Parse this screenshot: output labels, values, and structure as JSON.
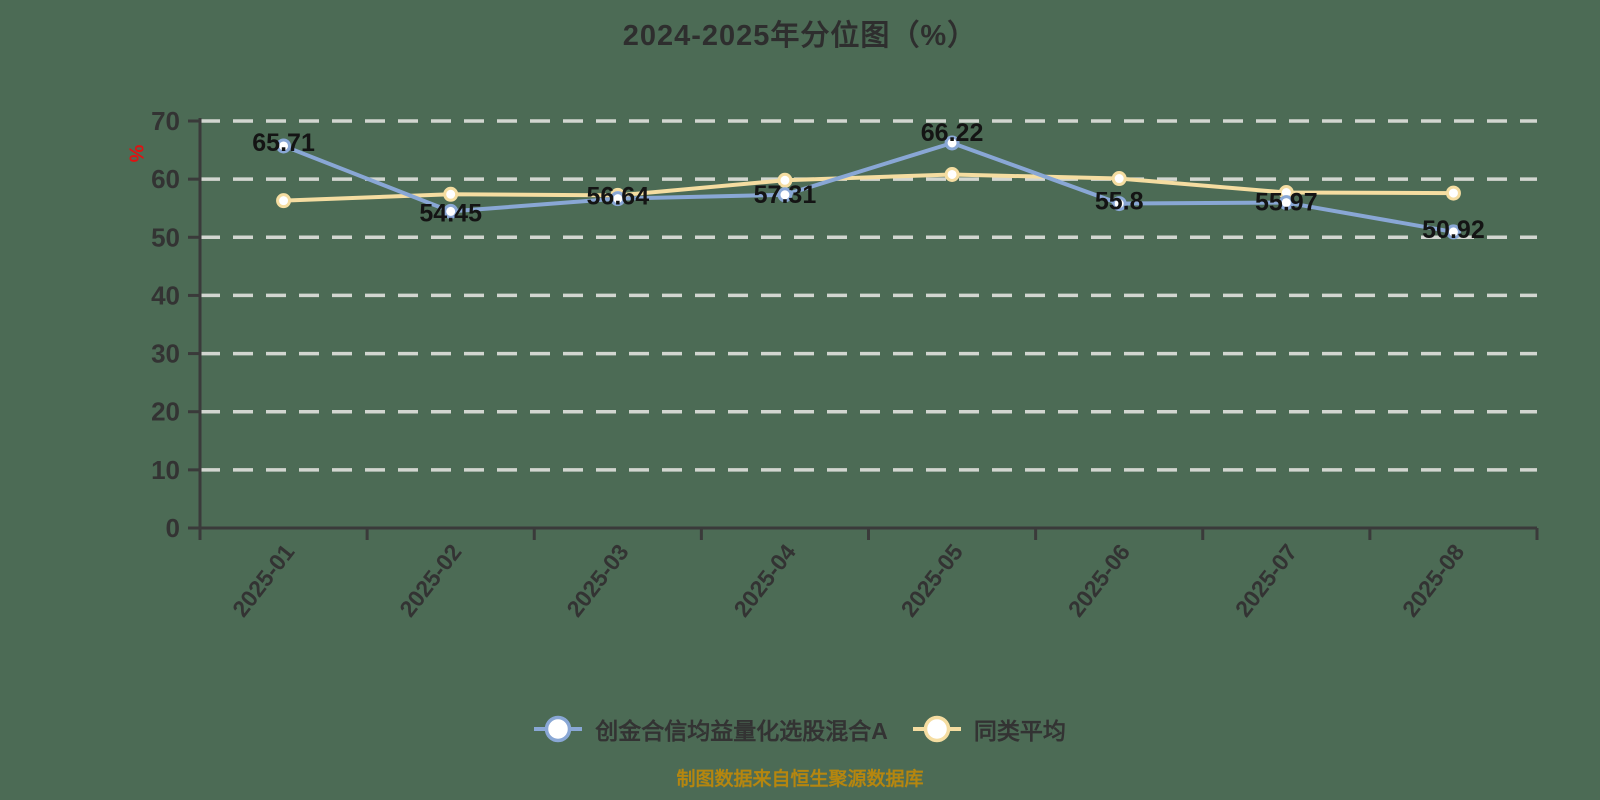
{
  "title": "2024-2025年分位图（%）",
  "caption": "制图数据来自恒生聚源数据库",
  "colors": {
    "background": "#4C6B55",
    "grid": "#D2D6D0",
    "axis": "#3A3A3A",
    "tick_label": "#333333",
    "data_label": "#141414",
    "fund_line": "#89A7D5",
    "average_line": "#F5DDA1",
    "marker_fill": "#FFFFFF",
    "unit_label": "#E01212",
    "caption_text": "#B5860F"
  },
  "chart_data": {
    "type": "line",
    "title": "2024-2025年分位图（%）",
    "xlabel": "",
    "ylabel": "%",
    "ylim": [
      0,
      70
    ],
    "y_ticks": [
      0,
      10,
      20,
      30,
      40,
      50,
      60,
      70
    ],
    "grid": "horizontal-dashed",
    "legend_position": "bottom",
    "categories": [
      "2025-01",
      "2025-02",
      "2025-03",
      "2025-04",
      "2025-05",
      "2025-06",
      "2025-07",
      "2025-08"
    ],
    "series": [
      {
        "name": "同类平均",
        "color": "#F5DDA1",
        "values": [
          56.3,
          57.4,
          57.2,
          59.8,
          60.8,
          60.1,
          57.7,
          57.6
        ],
        "point_labels": false
      },
      {
        "name": "创金合信均益量化选股混合A",
        "color": "#89A7D5",
        "values": [
          65.71,
          54.45,
          56.64,
          57.31,
          66.22,
          55.8,
          55.97,
          50.92
        ],
        "point_labels": true,
        "point_label_texts": [
          "65.71",
          "54.45",
          "56.64",
          "57.31",
          "66.22",
          "55.8",
          "55.97",
          "50.92"
        ]
      }
    ]
  }
}
